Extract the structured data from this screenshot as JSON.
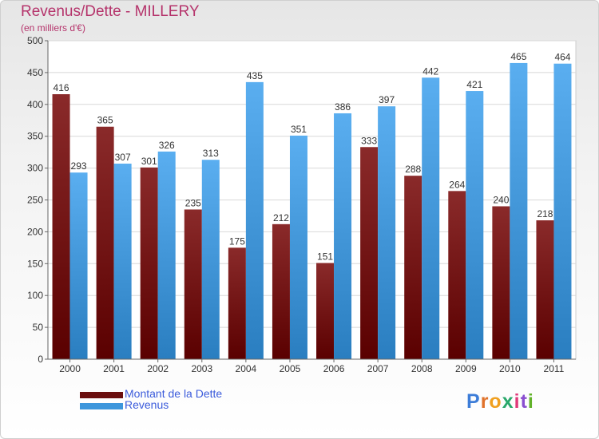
{
  "header": {
    "title": "Revenus/Dette - MILLERY",
    "subtitle": "(en milliers d'€)"
  },
  "legend": {
    "items": [
      {
        "label": "Montant de la Dette",
        "color": "#7a1a1a"
      },
      {
        "label": "Revenus",
        "color": "#3c96dc"
      }
    ]
  },
  "logo": {
    "letters": [
      "P",
      "r",
      "o",
      "x",
      "i",
      "t",
      "i"
    ],
    "colors": [
      "#3d7dd8",
      "#e0722b",
      "#f0a020",
      "#2aa86b",
      "#e03a7a",
      "#8a4fd0",
      "#62b22a"
    ]
  },
  "chart_data": {
    "type": "bar",
    "categories": [
      "2000",
      "2001",
      "2002",
      "2003",
      "2004",
      "2005",
      "2006",
      "2007",
      "2008",
      "2009",
      "2010",
      "2011"
    ],
    "series": [
      {
        "name": "Montant de la Dette",
        "values": [
          416,
          365,
          301,
          235,
          175,
          212,
          151,
          333,
          288,
          264,
          240,
          218
        ],
        "color": "#7a1a1a"
      },
      {
        "name": "Revenus",
        "values": [
          293,
          307,
          326,
          313,
          435,
          351,
          386,
          397,
          442,
          421,
          465,
          464
        ],
        "color": "#3c96dc"
      }
    ],
    "yticks": [
      0,
      50,
      100,
      150,
      200,
      250,
      300,
      350,
      400,
      450,
      500
    ],
    "ylim": [
      0,
      500
    ],
    "grid": true,
    "title": "Revenus/Dette - MILLERY",
    "xlabel": "",
    "ylabel": ""
  }
}
